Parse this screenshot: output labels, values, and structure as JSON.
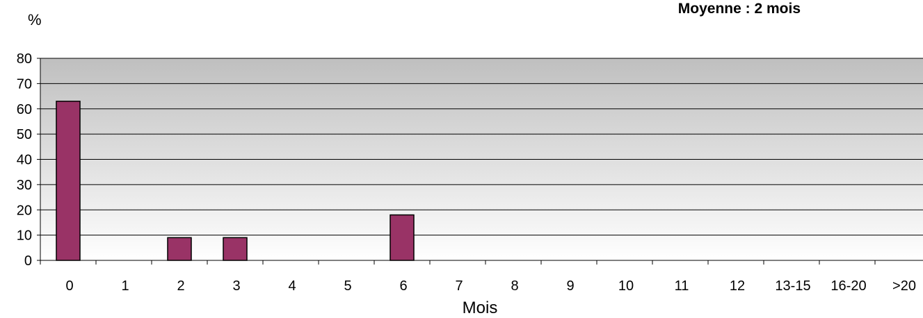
{
  "chart_data": {
    "type": "bar",
    "title": "",
    "annotation": "Moyenne : 2 mois",
    "xlabel": "Mois",
    "ylabel": "%",
    "categories": [
      "0",
      "1",
      "2",
      "3",
      "4",
      "5",
      "6",
      "7",
      "8",
      "9",
      "10",
      "11",
      "12",
      "13-15",
      "16-20",
      ">20"
    ],
    "values": [
      63,
      0,
      9,
      9,
      0,
      0,
      18,
      0,
      0,
      0,
      0,
      0,
      0,
      0,
      0,
      0
    ],
    "ylim": [
      0,
      80
    ],
    "yticks": [
      0,
      10,
      20,
      30,
      40,
      50,
      60,
      70,
      80
    ],
    "grid": true,
    "legend": "none",
    "colors": {
      "bar": "#993366",
      "plot_bg_top": "#bfbfbf",
      "plot_bg_bottom": "#ffffff"
    }
  }
}
